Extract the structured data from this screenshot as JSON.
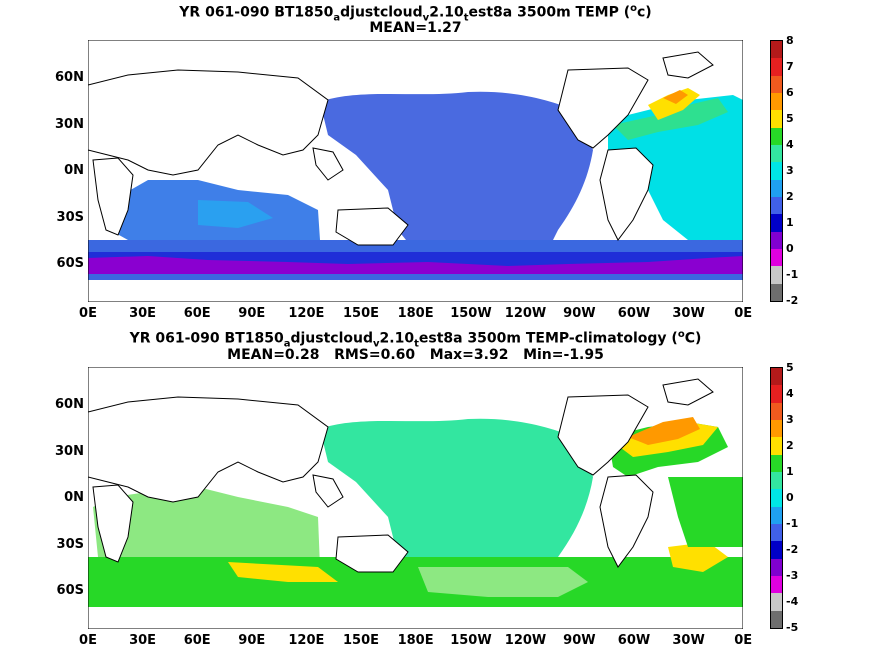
{
  "panels": [
    {
      "title_pre": "YR 061-090 BT1850",
      "title_sub1": "a",
      "title_mid": "djustcloud",
      "title_sub2": "v",
      "title_mid2": "2.10",
      "title_sub3": "t",
      "title_post": "est8a 3500m TEMP (",
      "title_sup": "o",
      "title_end": "c)",
      "stats": "MEAN=1.27",
      "colorbar_labels": [
        "8",
        "7",
        "6",
        "5",
        "4",
        "3",
        "2",
        "1",
        "0",
        "-1",
        "-2"
      ],
      "colorbar_colors": [
        "#b31a1a",
        "#e62020",
        "#f05a1e",
        "#ff9900",
        "#ffe000",
        "#27d827",
        "#33e6a0",
        "#00e6e6",
        "#1fa0f0",
        "#4060e8",
        "#0000c8",
        "#8000d0",
        "#e000e0",
        "#c8c8c8",
        "#6e6e6e"
      ]
    },
    {
      "title_pre": "YR 061-090 BT1850",
      "title_sub1": "a",
      "title_mid": "djustcloud",
      "title_sub2": "v",
      "title_mid2": "2.10",
      "title_sub3": "t",
      "title_post": "est8a 3500m TEMP-climatology (",
      "title_sup": "o",
      "title_end": "C)",
      "stats": "MEAN=0.28   RMS=0.60   Max=3.92   Min=-1.95",
      "colorbar_labels": [
        "5",
        "4",
        "3",
        "2",
        "1",
        "0",
        "-1",
        "-2",
        "-3",
        "-4",
        "-5"
      ],
      "colorbar_colors": [
        "#b31a1a",
        "#e62020",
        "#f05a1e",
        "#ff9900",
        "#ffe000",
        "#27d827",
        "#33e6a0",
        "#00e6e6",
        "#1fa0f0",
        "#4060e8",
        "#0000c8",
        "#8000d0",
        "#e000e0",
        "#c8c8c8",
        "#6e6e6e"
      ]
    }
  ],
  "lat_labels": [
    "60N",
    "30N",
    "0N",
    "30S",
    "60S"
  ],
  "lon_labels": [
    "0E",
    "30E",
    "60E",
    "90E",
    "120E",
    "150E",
    "180E",
    "150W",
    "120W",
    "90W",
    "60W",
    "30W",
    "0E"
  ]
}
